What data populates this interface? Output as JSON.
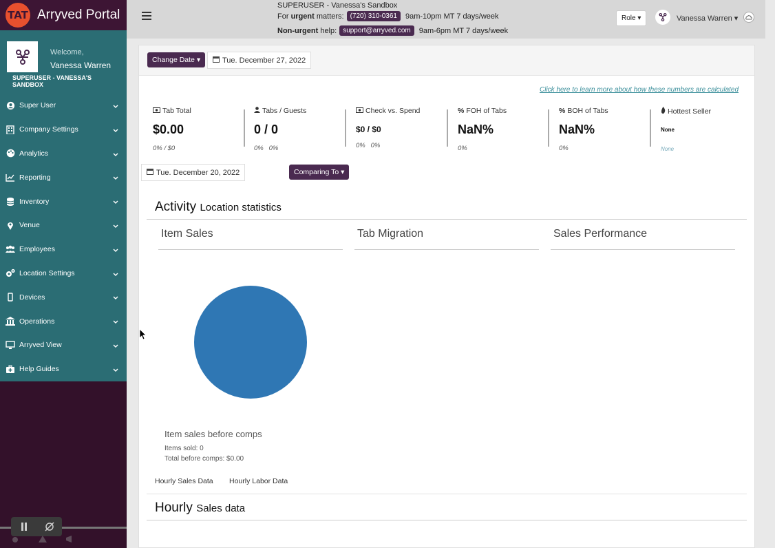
{
  "app": {
    "title": "Arryved Portal",
    "logo_text": "TAT"
  },
  "profile": {
    "welcome": "Welcome,",
    "name": "Vanessa Warren",
    "org": "SUPERUSER - VANESSA'S SANDBOX"
  },
  "nav": [
    {
      "label": "Super User",
      "icon": "user-circle-icon"
    },
    {
      "label": "Company Settings",
      "icon": "building-icon"
    },
    {
      "label": "Analytics",
      "icon": "palette-icon"
    },
    {
      "label": "Reporting",
      "icon": "line-chart-icon"
    },
    {
      "label": "Inventory",
      "icon": "database-icon"
    },
    {
      "label": "Venue",
      "icon": "map-marker-icon"
    },
    {
      "label": "Employees",
      "icon": "users-icon"
    },
    {
      "label": "Location Settings",
      "icon": "gears-icon"
    },
    {
      "label": "Devices",
      "icon": "mobile-icon"
    },
    {
      "label": "Operations",
      "icon": "bank-icon"
    },
    {
      "label": "Arryved View",
      "icon": "desktop-icon"
    },
    {
      "label": "Help Guides",
      "icon": "medkit-icon"
    }
  ],
  "topbar": {
    "title": "SUPERUSER - Vanessa's Sandbox",
    "urgent_prefix": "For ",
    "urgent_bold": "urgent",
    "urgent_suffix": " matters:",
    "phone": "(720) 310-0361",
    "urgent_hours": "9am-10pm MT 7 days/week",
    "nonurgent_bold": "Non-urgent",
    "nonurgent_suffix": " help:",
    "email": "support@arryved.com",
    "nonurgent_hours": "9am-6pm MT 7 days/week",
    "role_label": "Role",
    "user_name": "Vanessa Warren"
  },
  "dates": {
    "change_label": "Change Date",
    "current": "Tue. December 27, 2022",
    "compare_date": "Tue. December 20, 2022",
    "comparing_label": "Comparing To"
  },
  "learn_link": "Click here to learn more about how these numbers are calculated",
  "stats": [
    {
      "label": "Tab Total",
      "value": "$0.00",
      "sub": "0% / $0"
    },
    {
      "label": "Tabs / Guests",
      "value": "0 / 0",
      "sub": "0%   0%"
    },
    {
      "label": "Check vs. Spend",
      "value": "$0 / $0",
      "sub": "0%   0%"
    },
    {
      "label": "FOH of Tabs",
      "value": "NaN%",
      "sub": "0%"
    },
    {
      "label": "BOH of Tabs",
      "value": "NaN%",
      "sub": "0%"
    },
    {
      "label": "Hottest Seller",
      "value": "None",
      "sub": "None"
    }
  ],
  "activity": {
    "title": "Activity",
    "subtitle": "Location statistics",
    "tabs": [
      "Item Sales",
      "Tab Migration",
      "Sales Performance"
    ],
    "caption": "Item sales before comps",
    "items_sold": "Items sold: 0",
    "total_before_comps": "Total before comps: $0.00",
    "pie_color": "#2f77b4"
  },
  "subtabs": [
    "Hourly Sales Data",
    "Hourly Labor Data"
  ],
  "hourly": {
    "title": "Hourly",
    "subtitle": "Sales data"
  },
  "colors": {
    "sidebar_teal": "#2b6d74",
    "sidebar_dark": "#33112a",
    "accent_purple": "#4a2a50",
    "link_teal": "#3a8e9a"
  }
}
